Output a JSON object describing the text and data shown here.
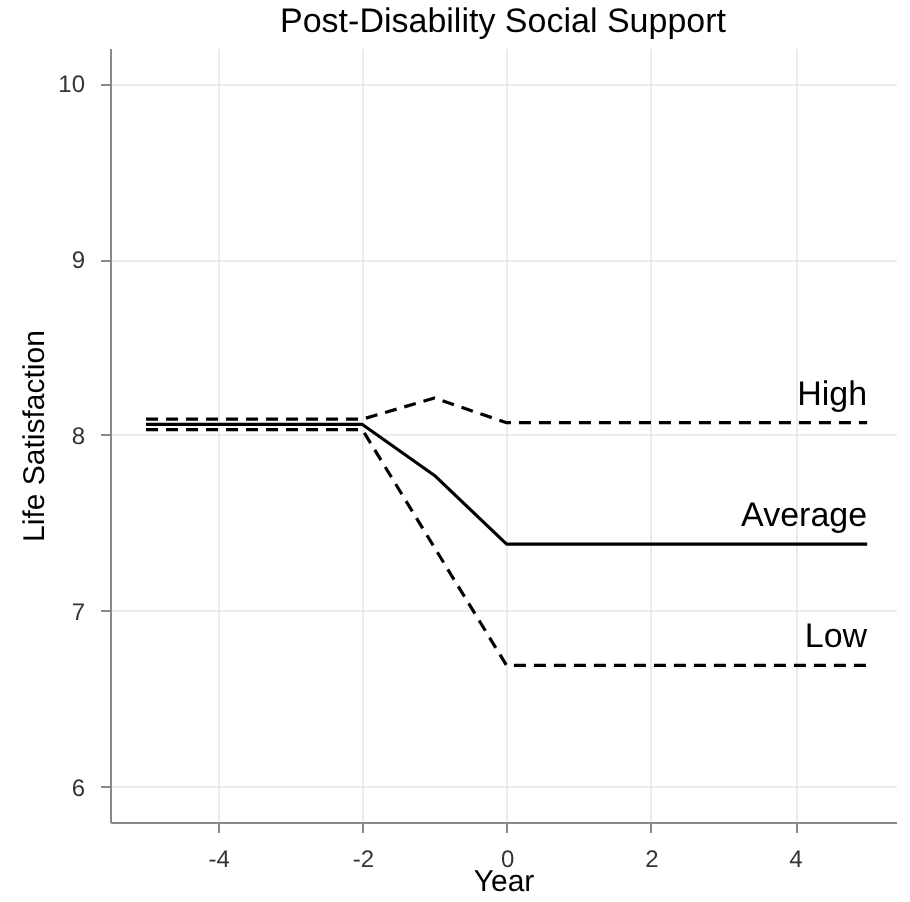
{
  "chart_data": {
    "type": "line",
    "title": "Post-Disability Social Support",
    "xlabel": "Year",
    "ylabel": "Life Satisfaction",
    "xlim": [
      -5.5,
      5.4
    ],
    "xticks": [
      -4,
      -2,
      0,
      2,
      4
    ],
    "ylim": [
      5.8,
      10.2
    ],
    "yticks": [
      6,
      7,
      8,
      9,
      10
    ],
    "grid": true,
    "series": [
      {
        "name": "High",
        "color": "#000000",
        "line_style": "dashed",
        "x": [
          -5,
          -2,
          -1,
          0,
          5
        ],
        "values": [
          8.09,
          8.09,
          8.21,
          8.07,
          8.07
        ]
      },
      {
        "name": "Average",
        "color": "#000000",
        "line_style": "solid",
        "x": [
          -5,
          -2,
          -1,
          0,
          5
        ],
        "values": [
          8.06,
          8.06,
          7.77,
          7.38,
          7.38
        ]
      },
      {
        "name": "Low",
        "color": "#000000",
        "line_style": "dashed",
        "x": [
          -5,
          -2,
          -1,
          0,
          5
        ],
        "values": [
          8.03,
          8.03,
          7.36,
          6.69,
          6.69
        ]
      }
    ]
  }
}
